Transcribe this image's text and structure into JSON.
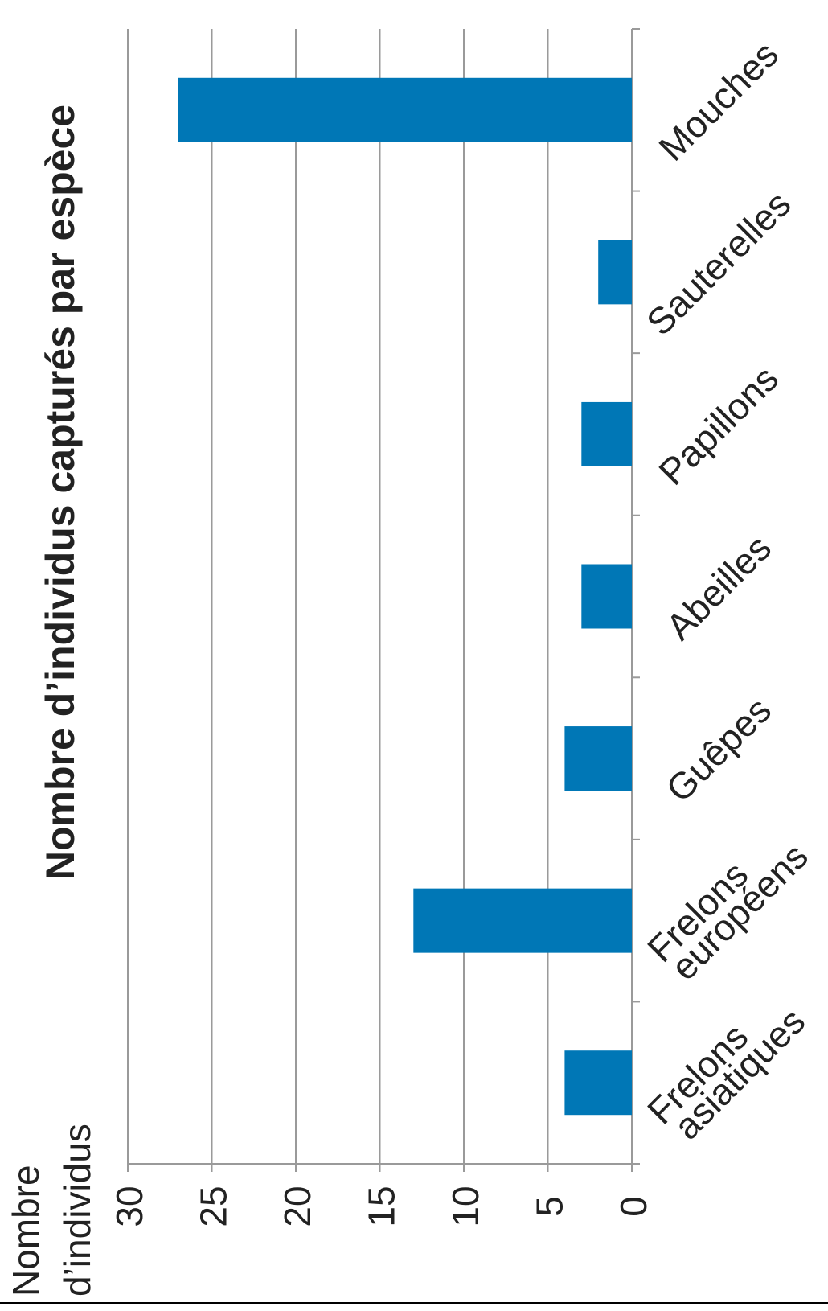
{
  "chart_data": {
    "type": "bar",
    "orientation": "rotated-90-clockwise",
    "title": "Nombre d’individus capturés par espèce",
    "ylabel_lines": [
      "Nombre",
      "d’individus"
    ],
    "categories": [
      [
        "Frelons",
        "asiatiques"
      ],
      [
        "Frelons",
        "européens"
      ],
      [
        "Guêpes"
      ],
      [
        "Abeilles"
      ],
      [
        "Papillons"
      ],
      [
        "Sauterelles"
      ],
      [
        "Mouches"
      ]
    ],
    "values": [
      4,
      13,
      4,
      3,
      3,
      2,
      27
    ],
    "ylim": [
      0,
      30
    ],
    "yticks": [
      0,
      5,
      10,
      15,
      20,
      25,
      30
    ],
    "grid": true,
    "legend": "none",
    "bar_color": "#0077b6"
  }
}
